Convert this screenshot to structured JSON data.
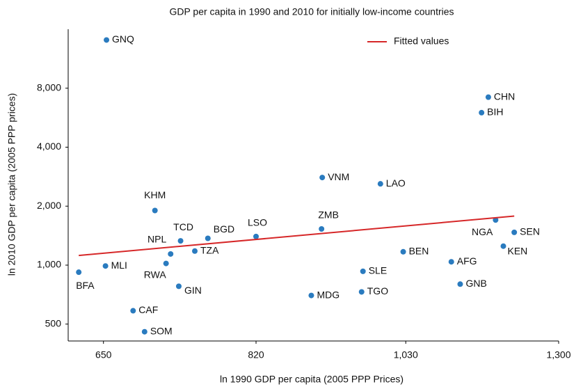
{
  "chart_data": {
    "type": "scatter",
    "title": "GDP per capita in 1990 and 2010 for initially low-income countries",
    "x_label": "ln 1990 GDP per capita (2005 PPP Prices)",
    "y_label": "ln 2010 GDP per capita (2005 PPP prices)",
    "x_log": true,
    "y_log": true,
    "xlim": [
      616,
      1300
    ],
    "xticks": [
      650,
      820,
      {
        "value": 1030,
        "label": "1,030"
      },
      {
        "value": 1300,
        "label": "1,300"
      }
    ],
    "ylim": [
      410,
      16000
    ],
    "yticks": [
      500,
      {
        "value": 1000,
        "label": "1,000"
      },
      {
        "value": 2000,
        "label": "2,000"
      },
      {
        "value": 4000,
        "label": "4,000"
      },
      {
        "value": 8000,
        "label": "8,000"
      }
    ],
    "color": "#2a7bbf",
    "labels": [
      "GNQ",
      "CHN",
      "BIH",
      "VNM",
      "LAO",
      "KHM",
      "ZMB",
      "NGA",
      "SEN",
      "LSO",
      "BGD",
      "TCD",
      "KEN",
      "NPL",
      "TZA",
      "BEN",
      "AFG",
      "RWA",
      "MLI",
      "BFA",
      "SLE",
      "GIN",
      "GNB",
      "TGO",
      "MDG",
      "CAF",
      "SOM"
    ],
    "x": [
      653,
      1168,
      1156,
      907,
      991,
      703,
      906,
      1181,
      1215,
      820,
      762,
      731,
      1195,
      720,
      747,
      1026,
      1104,
      715,
      652,
      626,
      965,
      729,
      1119,
      963,
      892,
      680,
      692
    ],
    "values": [
      14100,
      7200,
      6000,
      2800,
      2600,
      1900,
      1530,
      1700,
      1470,
      1400,
      1370,
      1330,
      1250,
      1140,
      1180,
      1170,
      1040,
      1020,
      990,
      920,
      930,
      780,
      800,
      730,
      700,
      585,
      457
    ],
    "series": [
      {
        "name": "Fitted values",
        "type": "line",
        "color": "#d62728",
        "x": [
          626,
          1215
        ],
        "values": [
          1120,
          1780
        ]
      }
    ],
    "legend": "top-right"
  }
}
